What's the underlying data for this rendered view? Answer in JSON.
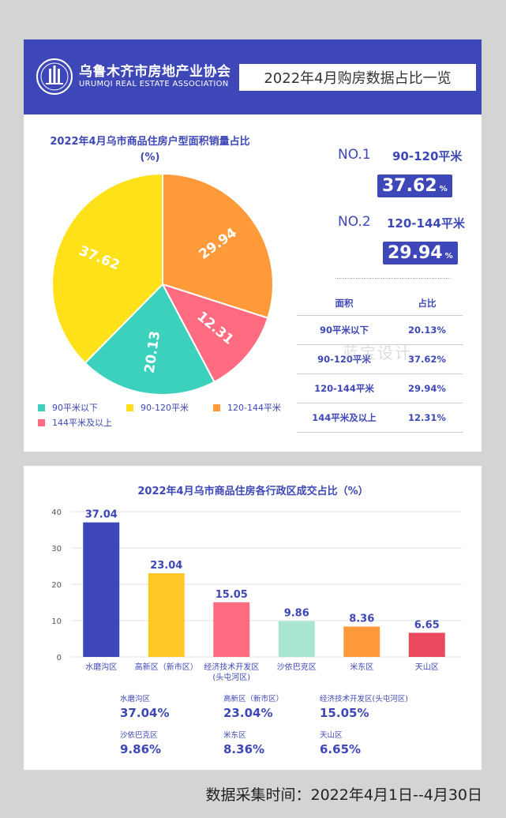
{
  "header": {
    "logo_cn": "乌鲁木齐市房地产业协会",
    "logo_en": "URUMQI REAL ESTATE ASSOCIATION",
    "title": "2022年4月购房数据占比一览"
  },
  "pie_section": {
    "title_line1": "2022年4月乌市商品住房户型面积销量占比",
    "title_line2": "(%)",
    "rank1": {
      "label": "NO.1",
      "range": "90-120平米",
      "value": "37.62",
      "unit": "%"
    },
    "rank2": {
      "label": "NO.2",
      "range": "120-144平米",
      "value": "29.94",
      "unit": "%"
    },
    "table": {
      "headers": [
        "面积",
        "占比"
      ],
      "rows": [
        [
          "90平米以下",
          "20.13%"
        ],
        [
          "90-120平米",
          "37.62%"
        ],
        [
          "120-144平米",
          "29.94%"
        ],
        [
          "144平米及以上",
          "12.31%"
        ]
      ]
    },
    "watermark": "蓝宝设计"
  },
  "bar_section": {
    "title": "2022年4月乌市商品住房各行政区成交占比（%）",
    "summary": [
      {
        "name": "水磨沟区",
        "value": "37.04%"
      },
      {
        "name": "高新区（新市区）",
        "value": "23.04%"
      },
      {
        "name": "经济技术开发区(头屯河区)",
        "value": "15.05%"
      },
      {
        "name": "沙依巴克区",
        "value": "9.86%"
      },
      {
        "name": "米东区",
        "value": "8.36%"
      },
      {
        "name": "天山区",
        "value": "6.65%"
      }
    ]
  },
  "footer": "数据采集时间：2022年4月1日--4月30日",
  "chart_data": [
    {
      "type": "pie",
      "title": "2022年4月乌市商品住房户型面积销量占比 (%)",
      "categories": [
        "90平米以下",
        "90-120平米",
        "120-144平米",
        "144平米及以上"
      ],
      "values": [
        20.13,
        37.62,
        29.94,
        12.31
      ],
      "labels": [
        "20.13",
        "37.62",
        "29.94",
        "12.31"
      ],
      "colors": [
        "#3cd1bc",
        "#ffe11a",
        "#ff9a3a",
        "#ff6b81"
      ],
      "legend_position": "bottom"
    },
    {
      "type": "bar",
      "title": "2022年4月乌市商品住房各行政区成交占比（%）",
      "categories": [
        "水磨沟区",
        "高新区（新市区）",
        "经济技术开发区(头屯河区)",
        "沙依巴克区",
        "米东区",
        "天山区"
      ],
      "category_lines": [
        [
          "水磨沟区"
        ],
        [
          "高新区（新市区）"
        ],
        [
          "经济技术开发区",
          "(头屯河区)"
        ],
        [
          "沙依巴克区"
        ],
        [
          "米东区"
        ],
        [
          "天山区"
        ]
      ],
      "values": [
        37.04,
        23.04,
        15.05,
        9.86,
        8.36,
        6.65
      ],
      "colors": [
        "#3d47b7",
        "#ffc929",
        "#ff6b81",
        "#a8e6cf",
        "#ff9a3a",
        "#e9485e"
      ],
      "yticks": [
        0,
        10,
        20,
        30,
        40
      ],
      "ylim": [
        0,
        40
      ],
      "grid": true
    }
  ]
}
